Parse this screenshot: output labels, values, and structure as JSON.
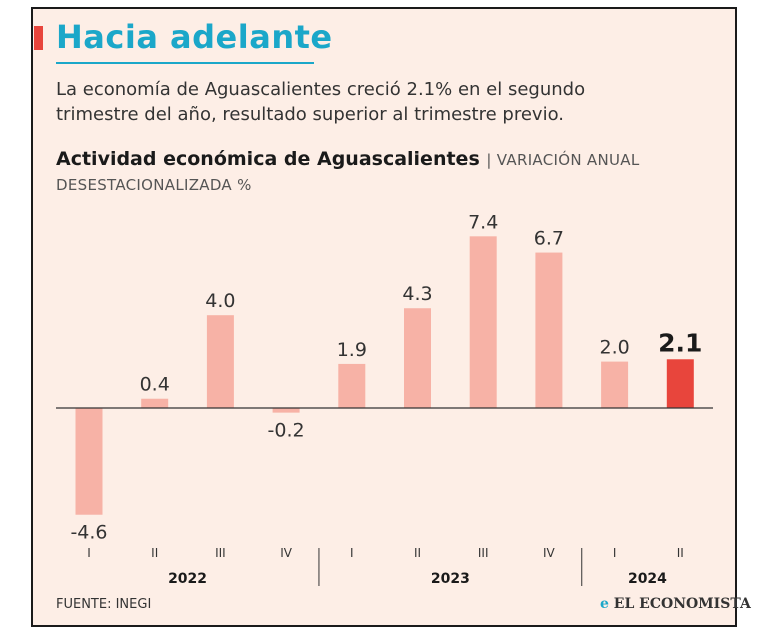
{
  "header": {
    "title": "Hacia adelante",
    "subtitle": "La economía de Aguascalientes creció 2.1% en el segundo trimestre del año, resultado superior al trimestre previo."
  },
  "chart_data": {
    "type": "bar",
    "title": "Actividad económica de Aguascalientes",
    "unit_label": "| VARIACIÓN ANUAL",
    "unit_label_2": "DESESTACIONALIZADA %",
    "categories": [
      "I",
      "II",
      "III",
      "IV",
      "I",
      "II",
      "III",
      "IV",
      "I",
      "II"
    ],
    "years": [
      {
        "label": "2022",
        "count": 4
      },
      {
        "label": "2023",
        "count": 4
      },
      {
        "label": "2024",
        "count": 2
      }
    ],
    "values": [
      -4.6,
      0.4,
      4.0,
      -0.2,
      1.9,
      4.3,
      7.4,
      6.7,
      2.0,
      2.1
    ],
    "value_labels": [
      "-4.6",
      "0.4",
      "4.0",
      "-0.2",
      "1.9",
      "4.3",
      "7.4",
      "6.7",
      "2.0",
      "2.1"
    ],
    "highlight_index": 9,
    "ylim": [
      -4.6,
      7.4
    ],
    "colors": {
      "bar": "#f7b2a6",
      "highlight": "#e8453c",
      "axis": "#333333"
    }
  },
  "footer": {
    "source": "FUENTE: INEGI",
    "brand": "EL ECONOMISTA",
    "brand_mark": "e"
  }
}
